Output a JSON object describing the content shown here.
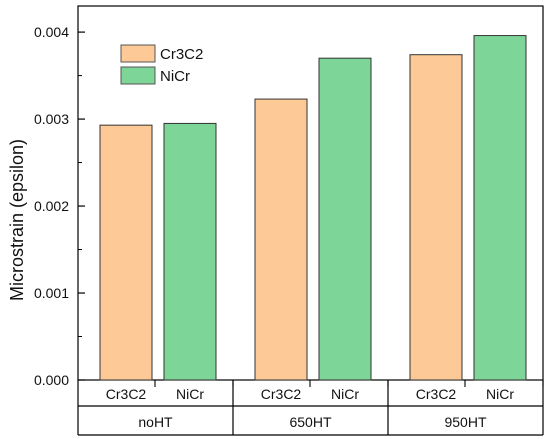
{
  "chart_data": {
    "type": "bar",
    "title": "",
    "xlabel": "",
    "ylabel": "Microstrain (epsilon)",
    "ylim": [
      0,
      0.0043
    ],
    "yticks": [
      0.0,
      0.001,
      0.002,
      0.003,
      0.004
    ],
    "ytick_labels": [
      "0.000",
      "0.001",
      "0.002",
      "0.003",
      "0.004"
    ],
    "groups": [
      "noHT",
      "650HT",
      "950HT"
    ],
    "series": [
      {
        "name": "Cr3C2",
        "color": "#fdc996",
        "values": [
          0.00293,
          0.00323,
          0.00374
        ]
      },
      {
        "name": "NiCr",
        "color": "#7dd597",
        "values": [
          0.00295,
          0.0037,
          0.00396
        ]
      }
    ],
    "subcategory_labels": [
      [
        "Cr3C2",
        "NiCr"
      ],
      [
        "Cr3C2",
        "NiCr"
      ],
      [
        "Cr3C2",
        "NiCr"
      ]
    ],
    "legend": {
      "placement": "top-left",
      "entries": [
        "Cr3C2",
        "NiCr"
      ]
    },
    "grid": false
  }
}
